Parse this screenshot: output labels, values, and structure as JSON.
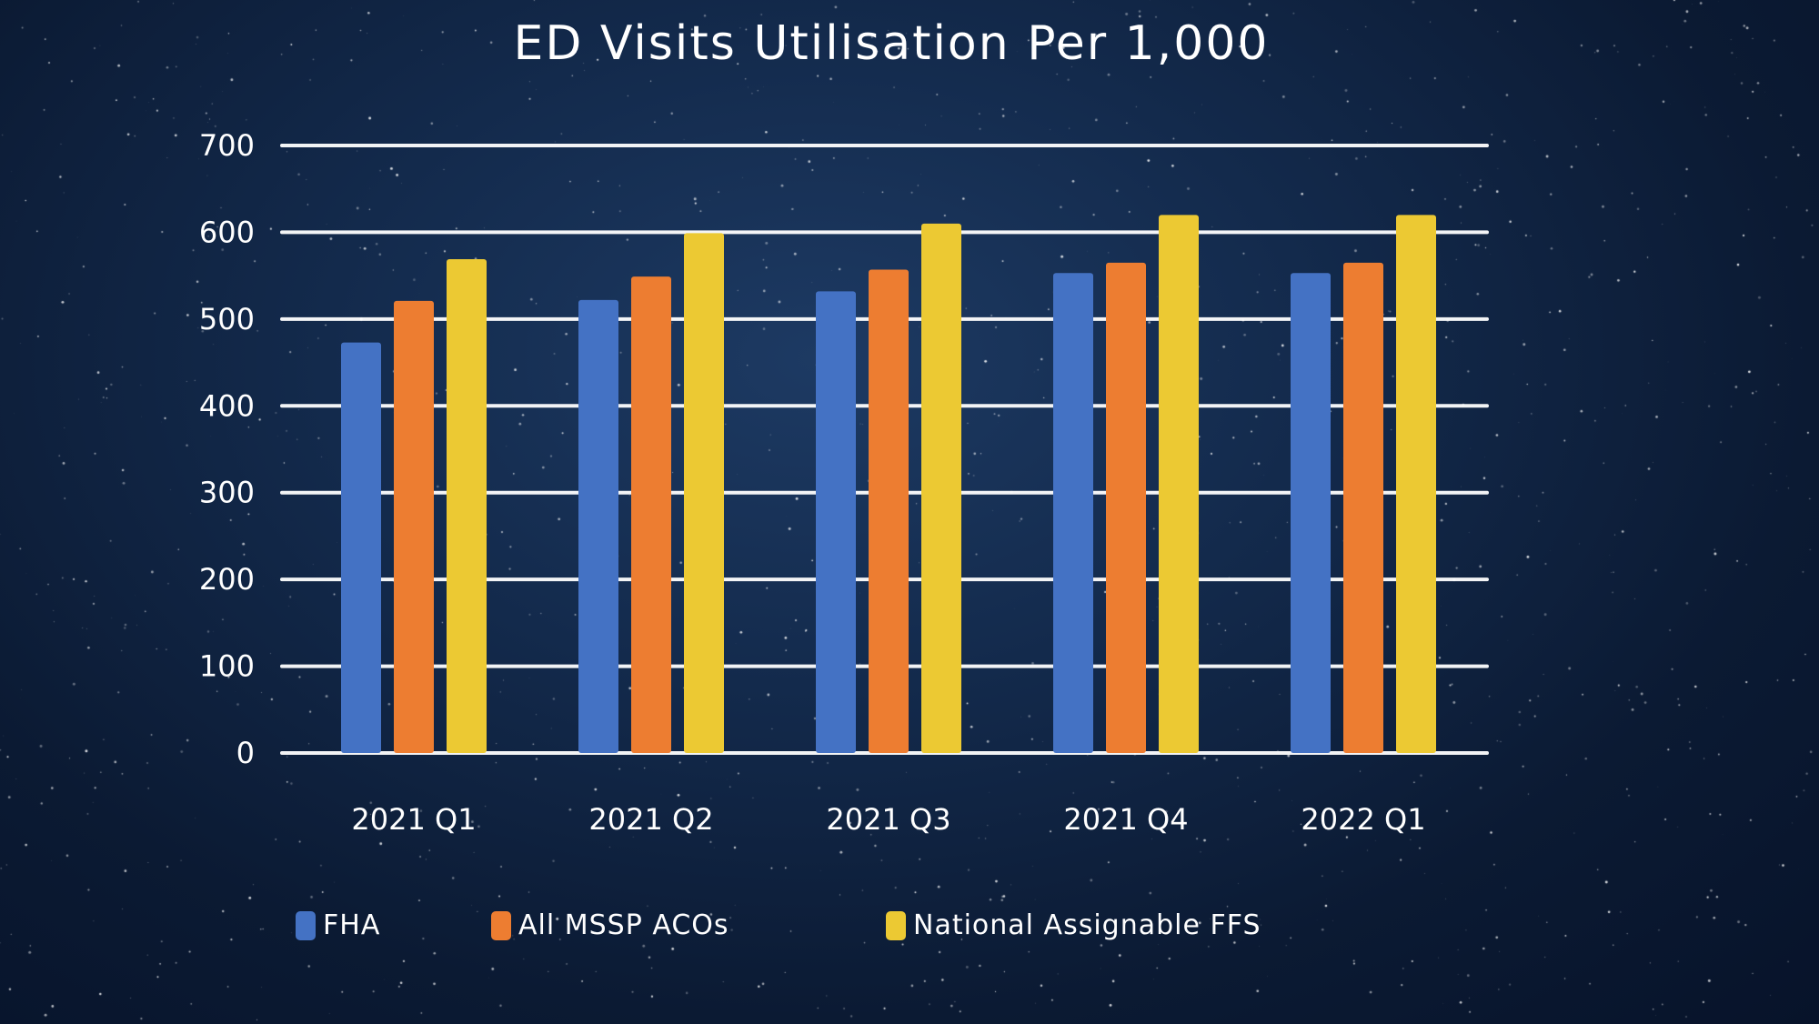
{
  "chart_data": {
    "type": "bar",
    "title": "ED Visits Utilisation Per 1,000",
    "xlabel": "",
    "ylabel": "",
    "ylim": [
      0,
      700
    ],
    "yticks": [
      0,
      100,
      200,
      300,
      400,
      500,
      600,
      700
    ],
    "grid": true,
    "legend_position": "bottom",
    "categories": [
      "2021 Q1",
      "2021 Q2",
      "2021 Q3",
      "2021 Q4",
      "2022 Q1"
    ],
    "series": [
      {
        "name": "FHA",
        "color": "#4472c4",
        "values": [
          473,
          522,
          532,
          553,
          553
        ]
      },
      {
        "name": "All MSSP ACOs",
        "color": "#ed7d31",
        "values": [
          521,
          549,
          557,
          565,
          565
        ]
      },
      {
        "name": "National Assignable FFS",
        "color": "#ecc933",
        "values": [
          569,
          599,
          610,
          620,
          620
        ]
      }
    ]
  }
}
